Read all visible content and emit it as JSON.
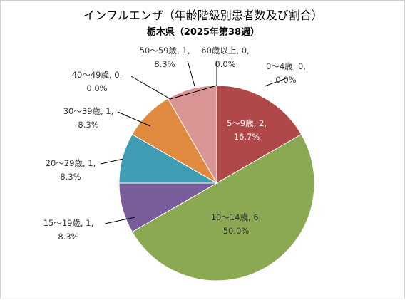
{
  "chart_data": {
    "type": "pie",
    "title": "インフルエンザ（年齢階級別患者数及び割合）",
    "subtitle": "栃木県（2025年第38週）",
    "slices": [
      {
        "label": "0～4歳",
        "value": 0,
        "percent": "0.0%",
        "color": "#4472C4"
      },
      {
        "label": "5～9歳",
        "value": 2,
        "percent": "16.7%",
        "color": "#B0484A"
      },
      {
        "label": "10～14歳",
        "value": 6,
        "percent": "50.0%",
        "color": "#8BA852"
      },
      {
        "label": "15～19歳",
        "value": 1,
        "percent": "8.3%",
        "color": "#795C9A"
      },
      {
        "label": "20～29歳",
        "value": 1,
        "percent": "8.3%",
        "color": "#3F9CB3"
      },
      {
        "label": "30～39歳",
        "value": 1,
        "percent": "8.3%",
        "color": "#E08A3F"
      },
      {
        "label": "40～49歳",
        "value": 0,
        "percent": "0.0%",
        "color": "#2E5D9E"
      },
      {
        "label": "50～59歳",
        "value": 1,
        "percent": "8.3%",
        "color": "#D99594"
      },
      {
        "label": "60歳以上",
        "value": 0,
        "percent": "0.0%",
        "color": "#7F7F7F"
      }
    ]
  }
}
